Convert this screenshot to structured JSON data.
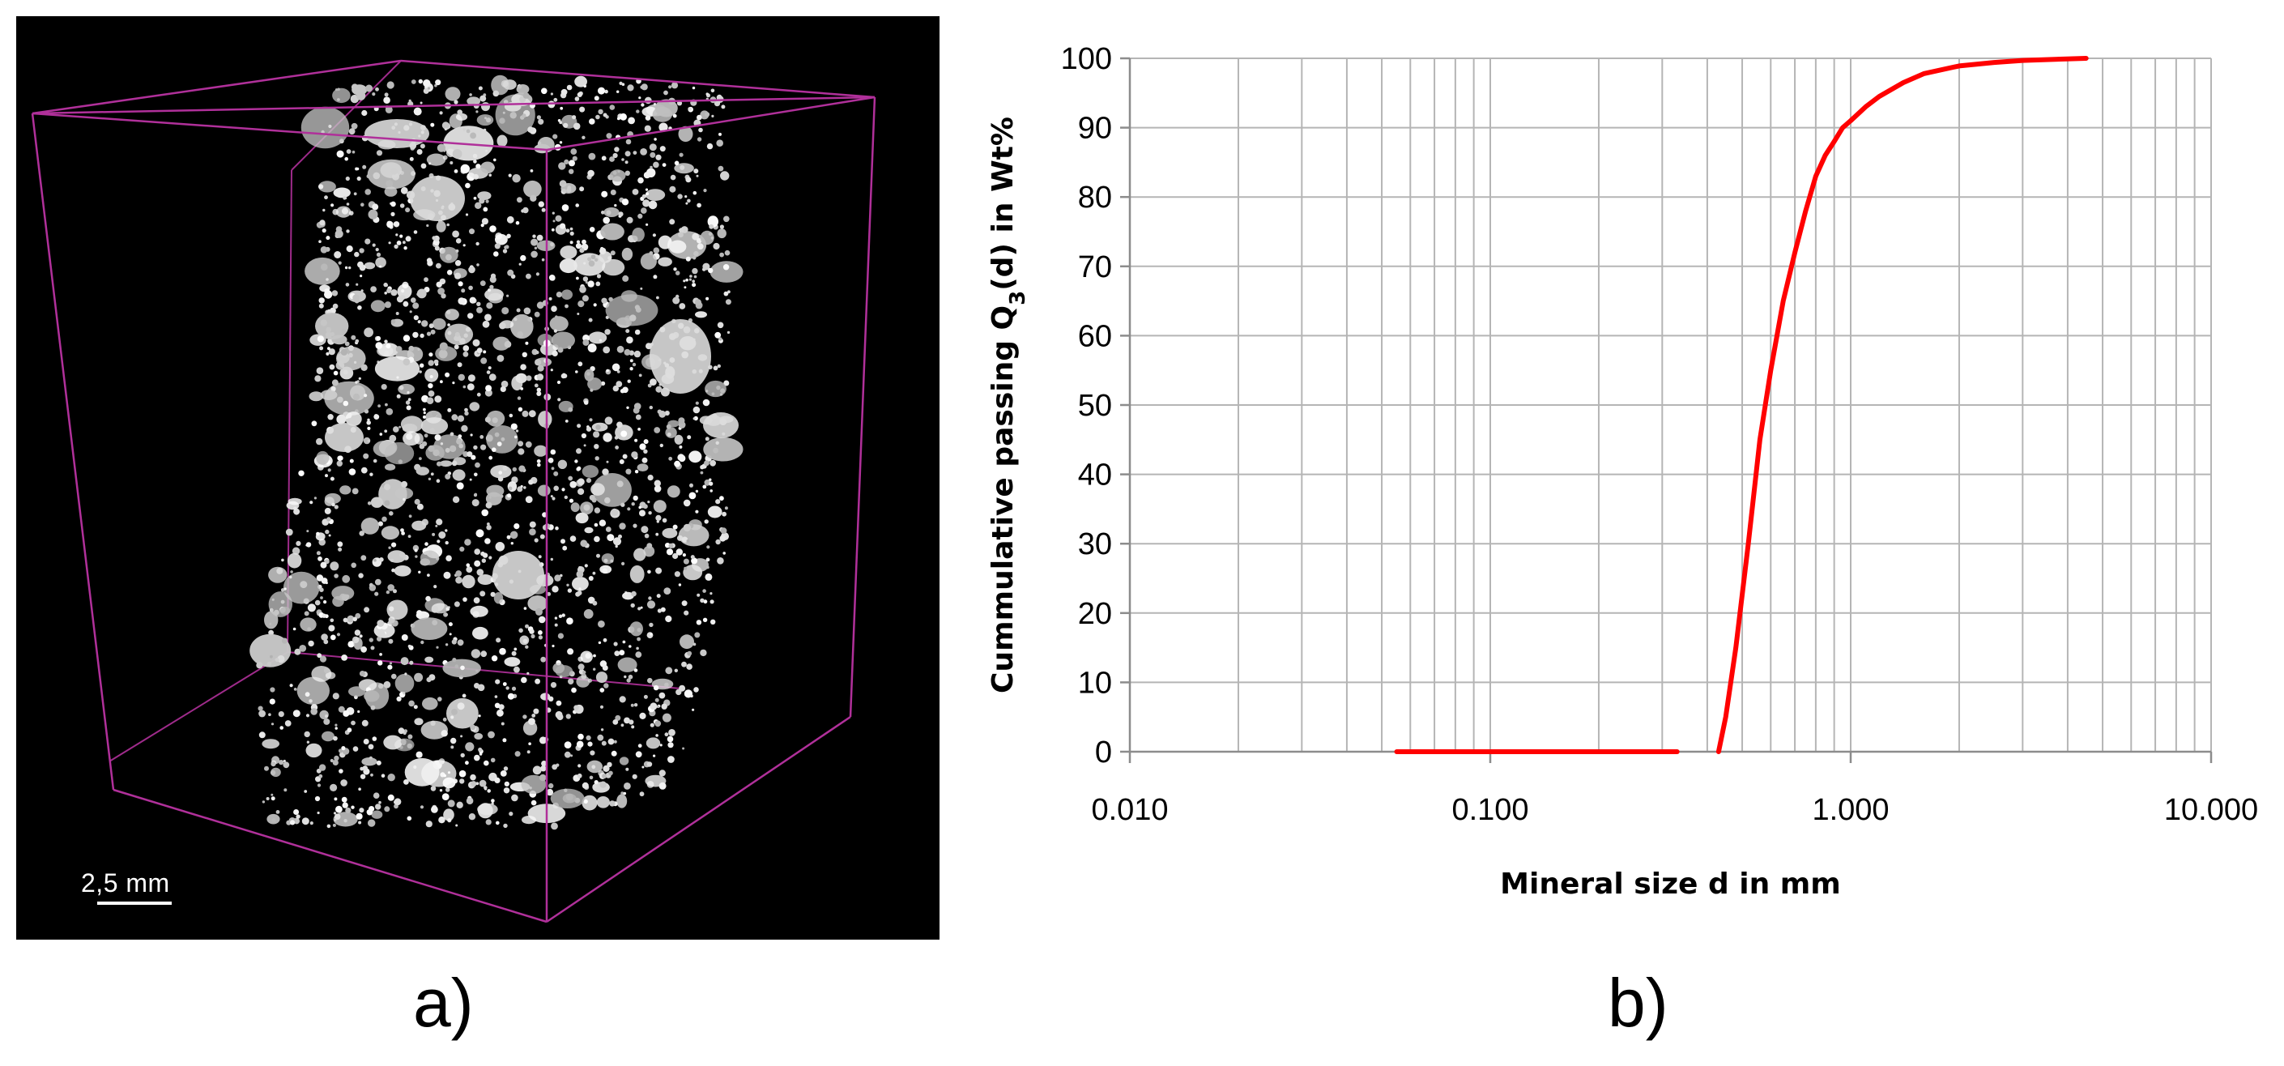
{
  "panels": {
    "a": {
      "label": "a)",
      "scale_bar_text": "2,5 mm",
      "box_color": "#b0309a"
    },
    "b": {
      "label": "b)"
    }
  },
  "chart_data": {
    "type": "line",
    "title": "",
    "xlabel": "Mineral size d in mm",
    "ylabel_prefix": "Cummulative passing Q",
    "ylabel_sub": "3",
    "ylabel_suffix": "(d) in Wt%",
    "x_scale": "log",
    "xlim": [
      0.01,
      10
    ],
    "ylim": [
      0,
      100
    ],
    "x_ticks": [
      {
        "value": 0.01,
        "label": "0.010"
      },
      {
        "value": 0.1,
        "label": "0.100"
      },
      {
        "value": 1,
        "label": "1.000"
      },
      {
        "value": 10,
        "label": "10.000"
      }
    ],
    "y_ticks": [
      {
        "value": 0,
        "label": "0"
      },
      {
        "value": 10,
        "label": "10"
      },
      {
        "value": 20,
        "label": "20"
      },
      {
        "value": 30,
        "label": "30"
      },
      {
        "value": 40,
        "label": "40"
      },
      {
        "value": 50,
        "label": "50"
      },
      {
        "value": 60,
        "label": "60"
      },
      {
        "value": 70,
        "label": "70"
      },
      {
        "value": 80,
        "label": "80"
      },
      {
        "value": 90,
        "label": "90"
      },
      {
        "value": 100,
        "label": "100"
      }
    ],
    "grid": true,
    "series": [
      {
        "color": "#ff0000",
        "segments": [
          {
            "x": [
              0.055,
              0.33
            ],
            "y": [
              0,
              0
            ]
          },
          {
            "x": [
              0.43,
              0.45,
              0.48,
              0.52,
              0.56,
              0.6,
              0.65,
              0.7,
              0.75,
              0.8,
              0.85,
              0.9,
              0.95,
              1.0,
              1.1,
              1.2,
              1.4,
              1.6,
              2.0,
              2.5,
              3.0,
              4.5
            ],
            "y": [
              0,
              5,
              15,
              30,
              45,
              55,
              65,
              72,
              78,
              83,
              86,
              88,
              90,
              91,
              93,
              94.5,
              96.5,
              97.8,
              98.9,
              99.4,
              99.7,
              100
            ]
          }
        ]
      }
    ]
  }
}
